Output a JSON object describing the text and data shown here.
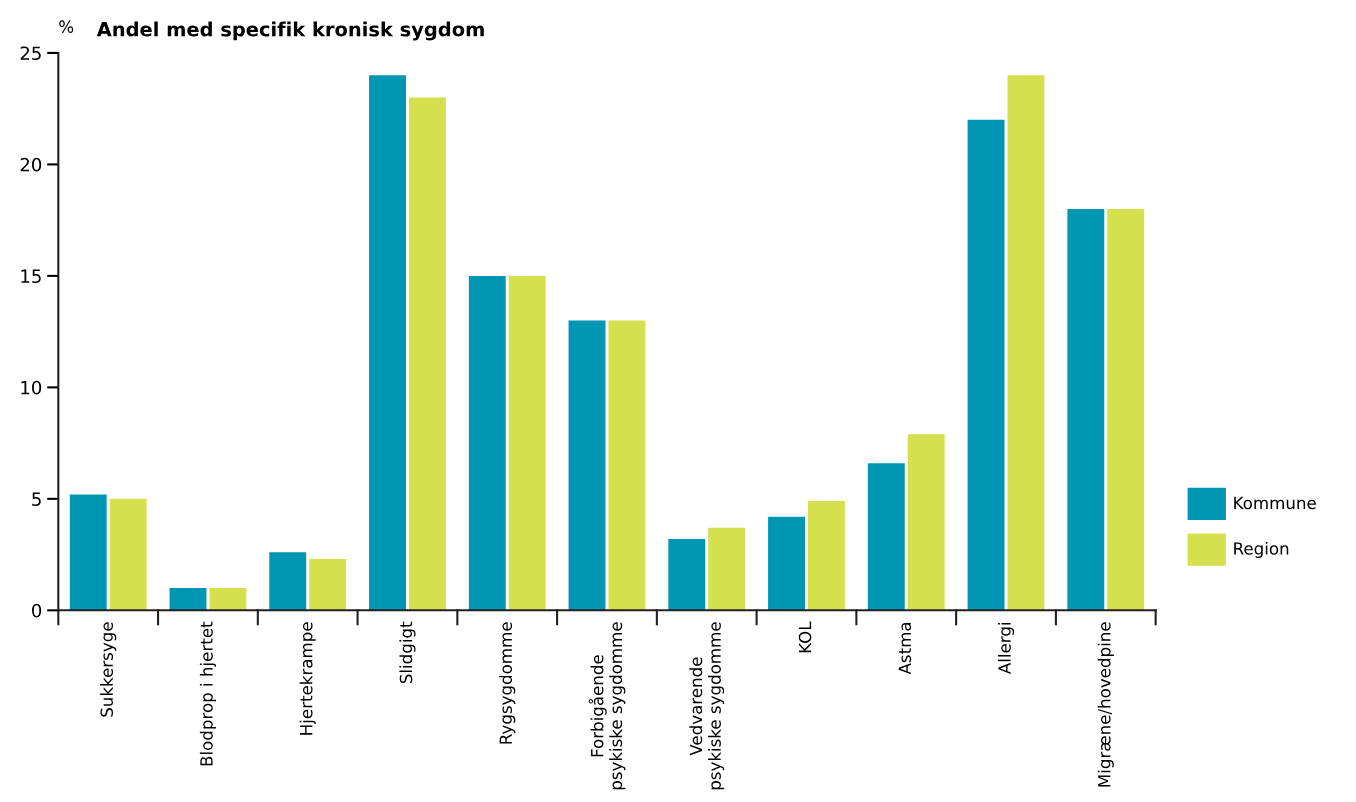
{
  "chart_data": {
    "type": "bar",
    "title": "Andel med specifik kronisk sygdom",
    "ylabel": "%",
    "categories": [
      "Sukkersyge",
      "Blodprop i hjertet",
      "Hjertekrampe",
      "Slidgigt",
      "Rygsygdomme",
      "Forbigående\npsykiske sygdomme",
      "Vedvarende\npsykiske sygdomme",
      "KOL",
      "Astma",
      "Allergi",
      "Migræne/hovedpine"
    ],
    "series": [
      {
        "name": "Kommune",
        "color": "#0096b4",
        "values": [
          5.2,
          1.0,
          2.6,
          24.0,
          15.0,
          13.0,
          3.2,
          4.2,
          6.6,
          22.0,
          18.0
        ]
      },
      {
        "name": "Region",
        "color": "#d5e04e",
        "values": [
          5.0,
          1.0,
          2.3,
          23.0,
          15.0,
          13.0,
          3.7,
          4.9,
          7.9,
          24.0,
          18.0
        ]
      }
    ],
    "ylim": [
      0,
      25
    ],
    "yticks": [
      0,
      5,
      10,
      15,
      20,
      25
    ],
    "grid": false,
    "legend": "right"
  }
}
